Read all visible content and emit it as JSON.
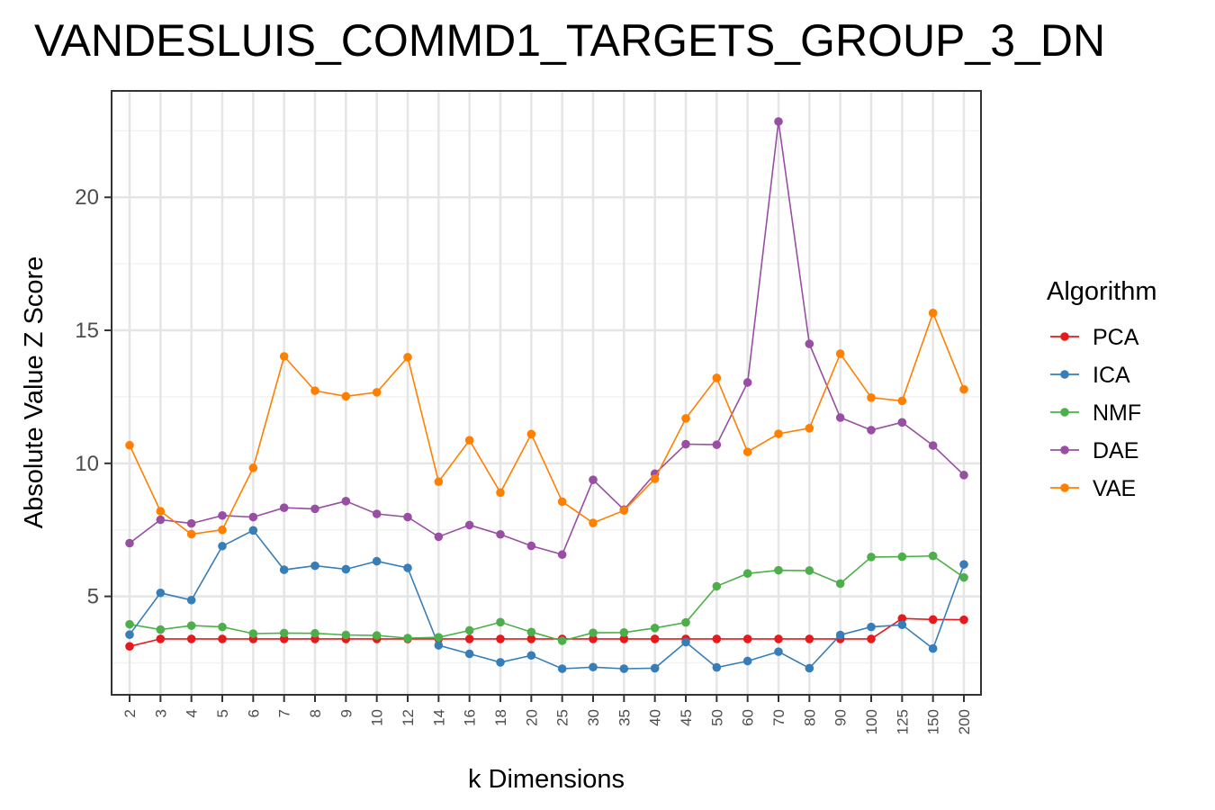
{
  "chart_data": {
    "type": "line",
    "title": "VANDESLUIS_COMMD1_TARGETS_GROUP_3_DN",
    "xlabel": "k Dimensions",
    "ylabel": "Absolute Value Z Score",
    "x_scale": "categorical",
    "categories": [
      "2",
      "3",
      "4",
      "5",
      "6",
      "7",
      "8",
      "9",
      "10",
      "12",
      "14",
      "16",
      "18",
      "20",
      "25",
      "30",
      "35",
      "40",
      "45",
      "50",
      "60",
      "70",
      "80",
      "90",
      "100",
      "125",
      "150",
      "200"
    ],
    "ylim": [
      1.3,
      24
    ],
    "yticks": [
      5,
      10,
      15,
      20
    ],
    "grid": true,
    "legend": {
      "title": "Algorithm",
      "position": "right"
    },
    "series": [
      {
        "name": "PCA",
        "color": "#e41a1c",
        "values": [
          3.12,
          3.4,
          3.4,
          3.4,
          3.4,
          3.4,
          3.4,
          3.4,
          3.4,
          3.4,
          3.4,
          3.4,
          3.4,
          3.4,
          3.4,
          3.4,
          3.4,
          3.4,
          3.4,
          3.4,
          3.4,
          3.4,
          3.4,
          3.4,
          3.4,
          4.17,
          4.13,
          4.12
        ]
      },
      {
        "name": "ICA",
        "color": "#377eb8",
        "values": [
          3.56,
          5.13,
          4.86,
          6.89,
          7.48,
          6.0,
          6.15,
          6.02,
          6.32,
          6.07,
          3.16,
          2.84,
          2.52,
          2.78,
          2.28,
          2.34,
          2.28,
          2.3,
          3.28,
          2.33,
          2.57,
          2.92,
          2.3,
          3.55,
          3.85,
          3.93,
          3.04,
          6.2
        ]
      },
      {
        "name": "NMF",
        "color": "#4daf4a",
        "values": [
          3.95,
          3.75,
          3.9,
          3.85,
          3.6,
          3.62,
          3.61,
          3.55,
          3.53,
          3.43,
          3.46,
          3.72,
          4.03,
          3.66,
          3.33,
          3.63,
          3.64,
          3.81,
          4.02,
          5.38,
          5.86,
          5.98,
          5.97,
          5.48,
          6.48,
          6.49,
          6.52,
          5.71
        ]
      },
      {
        "name": "DAE",
        "color": "#984ea3",
        "values": [
          7.0,
          7.88,
          7.74,
          8.04,
          7.98,
          8.33,
          8.29,
          8.58,
          8.1,
          7.98,
          7.24,
          7.68,
          7.33,
          6.9,
          6.57,
          9.38,
          8.26,
          9.61,
          10.72,
          10.7,
          13.04,
          22.85,
          14.49,
          11.72,
          11.25,
          11.54,
          10.67,
          9.56
        ]
      },
      {
        "name": "VAE",
        "color": "#ff7f00",
        "values": [
          10.68,
          8.2,
          7.34,
          7.5,
          9.83,
          14.02,
          12.73,
          12.52,
          12.67,
          13.99,
          9.31,
          10.87,
          8.9,
          11.1,
          8.56,
          7.76,
          8.23,
          9.42,
          11.69,
          13.21,
          10.43,
          11.11,
          11.32,
          14.12,
          12.47,
          12.35,
          15.65,
          12.78
        ]
      }
    ]
  }
}
